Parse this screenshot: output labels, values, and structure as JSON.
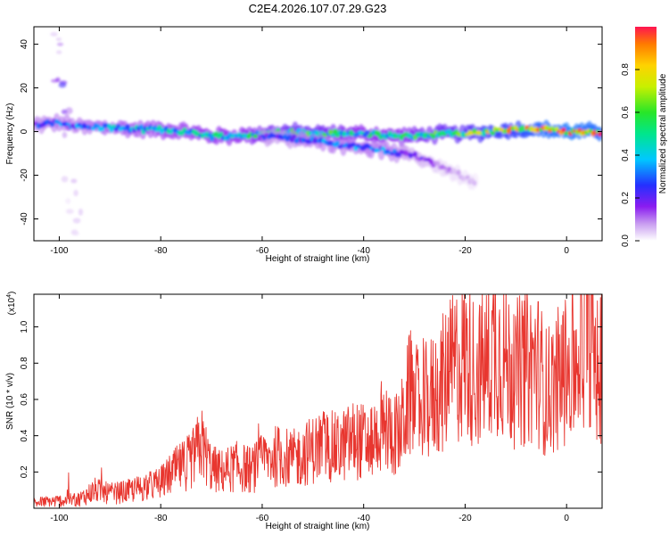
{
  "figure": {
    "title": "C2E4.2026.107.07.29.G23"
  },
  "chart_data": [
    {
      "type": "heatmap",
      "title": "C2E4.2026.107.07.29.G23",
      "xlabel": "Height of straight line (km)",
      "ylabel": "Frequency (Hz)",
      "xlim": [
        -105,
        7
      ],
      "ylim": [
        -50,
        48
      ],
      "x_ticks": [
        -100,
        -80,
        -60,
        -40,
        -20,
        0
      ],
      "x_tick_labels": [
        "-100",
        "-80",
        "-60",
        "-40",
        "-20",
        "0"
      ],
      "y_ticks": [
        -40,
        -20,
        0,
        20,
        40
      ],
      "y_tick_labels": [
        "-40",
        "-20",
        "0",
        "20",
        "40"
      ],
      "ridges": [
        {
          "name": "main ridge",
          "x": [
            -105,
            -100,
            -95,
            -90,
            -85,
            -80,
            -75,
            -70,
            -65,
            -60,
            -55,
            -50,
            -45,
            -40,
            -35,
            -30,
            -25,
            -20,
            -15,
            -10,
            -5,
            0,
            7
          ],
          "y": [
            3,
            4,
            2,
            2,
            1,
            1,
            0,
            -2,
            -2,
            -1,
            0,
            -1,
            -1,
            -1,
            -2,
            -2,
            -1,
            -1,
            0,
            1,
            1,
            0,
            0
          ],
          "amplitude": [
            0.25,
            0.3,
            0.3,
            0.35,
            0.35,
            0.4,
            0.4,
            0.45,
            0.45,
            0.5,
            0.55,
            0.55,
            0.5,
            0.45,
            0.45,
            0.5,
            0.55,
            0.6,
            0.7,
            0.75,
            0.85,
            0.9,
            0.85
          ]
        },
        {
          "name": "lower branch",
          "x": [
            -60,
            -55,
            -50,
            -45,
            -40,
            -35,
            -30,
            -25,
            -18
          ],
          "y": [
            -2,
            -3,
            -4,
            -6,
            -7,
            -9,
            -11,
            -16,
            -23
          ],
          "amplitude": [
            0.25,
            0.25,
            0.3,
            0.3,
            0.3,
            0.3,
            0.2,
            0.1,
            0.05
          ]
        },
        {
          "name": "vertical spray",
          "x": [
            -101,
            -100,
            -99,
            -98,
            -97,
            -96
          ],
          "y": [
            45,
            25,
            12,
            -20,
            -35,
            -48
          ],
          "amplitude": [
            0.1,
            0.15,
            0.2,
            0.05,
            0.05,
            0.05
          ]
        }
      ],
      "colorbar": {
        "label": "Normalized spectral amplitude",
        "range": [
          0,
          1
        ],
        "ticks": [
          0,
          0.2,
          0.4,
          0.6,
          0.8
        ],
        "tick_labels": [
          "0.0",
          "0.2",
          "0.4",
          "0.6",
          "0.8"
        ]
      }
    },
    {
      "type": "line",
      "xlabel": "Height of straight line (km)",
      "ylabel": "SNR (10 * v/v)",
      "y_exponent_label": "(x10",
      "y_exponent_power": "4",
      "y_exponent_close": ")",
      "xlim": [
        -105,
        7
      ],
      "ylim": [
        0,
        1.18
      ],
      "x_ticks": [
        -100,
        -80,
        -60,
        -40,
        -20,
        0
      ],
      "x_tick_labels": [
        "-100",
        "-80",
        "-60",
        "-40",
        "-20",
        "0"
      ],
      "y_ticks": [
        0.2,
        0.4,
        0.6,
        0.8,
        1.0
      ],
      "y_tick_labels": [
        "0.2",
        "0.4",
        "0.6",
        "0.8",
        "1.0"
      ],
      "series": [
        {
          "name": "SNR",
          "color": "#e8362f",
          "x": [
            -105,
            -100,
            -96,
            -93,
            -90,
            -87,
            -84,
            -80,
            -77,
            -74,
            -72,
            -70,
            -68,
            -65,
            -62,
            -60,
            -57,
            -54,
            -51,
            -48,
            -45,
            -42,
            -39,
            -36,
            -33,
            -31,
            -29,
            -27,
            -25,
            -22,
            -20,
            -18,
            -16,
            -14,
            -12,
            -10,
            -8,
            -6,
            -4,
            -2,
            0,
            2,
            4,
            6,
            7
          ],
          "y": [
            0.03,
            0.04,
            0.05,
            0.1,
            0.08,
            0.09,
            0.11,
            0.14,
            0.21,
            0.26,
            0.36,
            0.22,
            0.2,
            0.23,
            0.21,
            0.26,
            0.29,
            0.27,
            0.31,
            0.35,
            0.33,
            0.38,
            0.36,
            0.44,
            0.4,
            0.62,
            0.56,
            0.6,
            0.66,
            0.78,
            0.84,
            0.74,
            0.78,
            0.9,
            0.8,
            0.74,
            0.78,
            0.8,
            0.64,
            0.7,
            0.76,
            0.8,
            1.1,
            0.78,
            0.82
          ]
        }
      ]
    }
  ]
}
